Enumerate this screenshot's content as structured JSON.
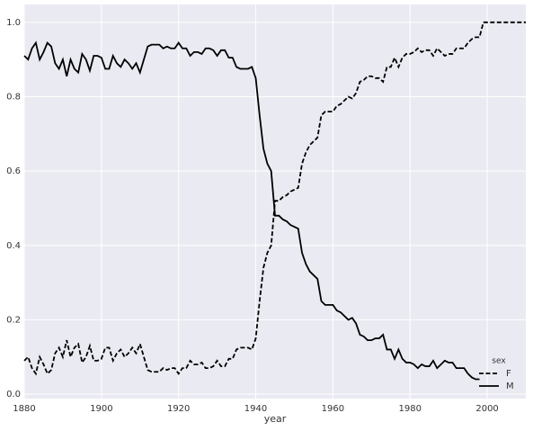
{
  "chart_data": {
    "type": "line",
    "xlabel": "year",
    "x": [
      1880,
      1881,
      1882,
      1883,
      1884,
      1885,
      1886,
      1887,
      1888,
      1889,
      1890,
      1891,
      1892,
      1893,
      1894,
      1895,
      1896,
      1897,
      1898,
      1899,
      1900,
      1901,
      1902,
      1903,
      1904,
      1905,
      1906,
      1907,
      1908,
      1909,
      1910,
      1911,
      1912,
      1913,
      1914,
      1915,
      1916,
      1917,
      1918,
      1919,
      1920,
      1921,
      1922,
      1923,
      1924,
      1925,
      1926,
      1927,
      1928,
      1929,
      1930,
      1931,
      1932,
      1933,
      1934,
      1935,
      1936,
      1937,
      1938,
      1939,
      1940,
      1941,
      1942,
      1943,
      1944,
      1945,
      1946,
      1947,
      1948,
      1949,
      1950,
      1951,
      1952,
      1953,
      1954,
      1955,
      1956,
      1957,
      1958,
      1959,
      1960,
      1961,
      1962,
      1963,
      1964,
      1965,
      1966,
      1967,
      1968,
      1969,
      1970,
      1971,
      1972,
      1973,
      1974,
      1975,
      1976,
      1977,
      1978,
      1979,
      1980,
      1981,
      1982,
      1983,
      1984,
      1985,
      1986,
      1987,
      1988,
      1989,
      1990,
      1991,
      1992,
      1993,
      1994,
      1995,
      1996,
      1997,
      1998,
      1999,
      2000,
      2001,
      2002,
      2003,
      2004,
      2005,
      2006,
      2007,
      2008,
      2009,
      2010
    ],
    "series": [
      {
        "name": "F",
        "color": "#000000",
        "dash": true,
        "values": [
          0.09,
          0.1,
          0.07,
          0.055,
          0.1,
          0.08,
          0.055,
          0.065,
          0.11,
          0.125,
          0.1,
          0.145,
          0.1,
          0.125,
          0.135,
          0.085,
          0.1,
          0.13,
          0.09,
          0.09,
          0.095,
          0.125,
          0.125,
          0.09,
          0.11,
          0.12,
          0.1,
          0.11,
          0.125,
          0.11,
          0.135,
          0.1,
          0.065,
          0.06,
          0.06,
          0.06,
          0.07,
          0.065,
          0.07,
          0.07,
          0.055,
          0.07,
          0.07,
          0.09,
          0.08,
          0.08,
          0.085,
          0.07,
          0.07,
          0.075,
          0.09,
          0.075,
          0.075,
          0.095,
          0.095,
          0.12,
          0.125,
          0.125,
          0.125,
          0.12,
          0.15,
          0.25,
          0.34,
          0.38,
          0.4,
          0.52,
          0.52,
          0.53,
          0.535,
          0.545,
          0.55,
          0.555,
          0.62,
          0.65,
          0.67,
          0.68,
          0.69,
          0.75,
          0.76,
          0.76,
          0.76,
          0.775,
          0.78,
          0.79,
          0.8,
          0.795,
          0.81,
          0.84,
          0.845,
          0.855,
          0.855,
          0.85,
          0.85,
          0.84,
          0.88,
          0.88,
          0.905,
          0.88,
          0.905,
          0.915,
          0.915,
          0.92,
          0.93,
          0.92,
          0.925,
          0.925,
          0.91,
          0.93,
          0.92,
          0.91,
          0.915,
          0.915,
          0.93,
          0.93,
          0.93,
          0.945,
          0.955,
          0.96,
          0.96,
          1.0,
          1.0,
          1.0,
          1.0,
          1.0,
          1.0,
          1.0,
          1.0,
          1.0,
          1.0,
          1.0,
          1.0
        ]
      },
      {
        "name": "M",
        "color": "#000000",
        "dash": false,
        "values": [
          0.91,
          0.9,
          0.93,
          0.945,
          0.9,
          0.92,
          0.945,
          0.935,
          0.89,
          0.875,
          0.9,
          0.855,
          0.9,
          0.875,
          0.865,
          0.915,
          0.9,
          0.87,
          0.91,
          0.91,
          0.905,
          0.875,
          0.875,
          0.91,
          0.89,
          0.88,
          0.9,
          0.89,
          0.875,
          0.89,
          0.865,
          0.9,
          0.935,
          0.94,
          0.94,
          0.94,
          0.93,
          0.935,
          0.93,
          0.93,
          0.945,
          0.93,
          0.93,
          0.91,
          0.92,
          0.92,
          0.915,
          0.93,
          0.93,
          0.925,
          0.91,
          0.925,
          0.925,
          0.905,
          0.905,
          0.88,
          0.875,
          0.875,
          0.875,
          0.88,
          0.85,
          0.75,
          0.66,
          0.62,
          0.6,
          0.48,
          0.48,
          0.47,
          0.465,
          0.455,
          0.45,
          0.445,
          0.38,
          0.35,
          0.33,
          0.32,
          0.31,
          0.25,
          0.24,
          0.24,
          0.24,
          0.225,
          0.22,
          0.21,
          0.2,
          0.205,
          0.19,
          0.16,
          0.155,
          0.145,
          0.145,
          0.15,
          0.15,
          0.16,
          0.12,
          0.12,
          0.095,
          0.12,
          0.095,
          0.085,
          0.085,
          0.08,
          0.07,
          0.08,
          0.075,
          0.075,
          0.09,
          0.07,
          0.08,
          0.09,
          0.085,
          0.085,
          0.07,
          0.07,
          0.07,
          0.055,
          0.045,
          0.04,
          0.04,
          null,
          null,
          null,
          null,
          null,
          null,
          null,
          null,
          null,
          null,
          null,
          null
        ]
      }
    ],
    "xlim": [
      1880,
      2010
    ],
    "xticks": [
      1880,
      1900,
      1920,
      1940,
      1960,
      1980,
      2000
    ],
    "ylim": [
      -0.012,
      1.048
    ],
    "yticks": [
      {
        "value": 0,
        "label": "0.0"
      },
      0.2,
      0.4,
      0.6,
      0.8,
      {
        "value": 1,
        "label": "1.0"
      }
    ],
    "grid": true,
    "legend_title": "sex",
    "legend_position": "lower right"
  }
}
